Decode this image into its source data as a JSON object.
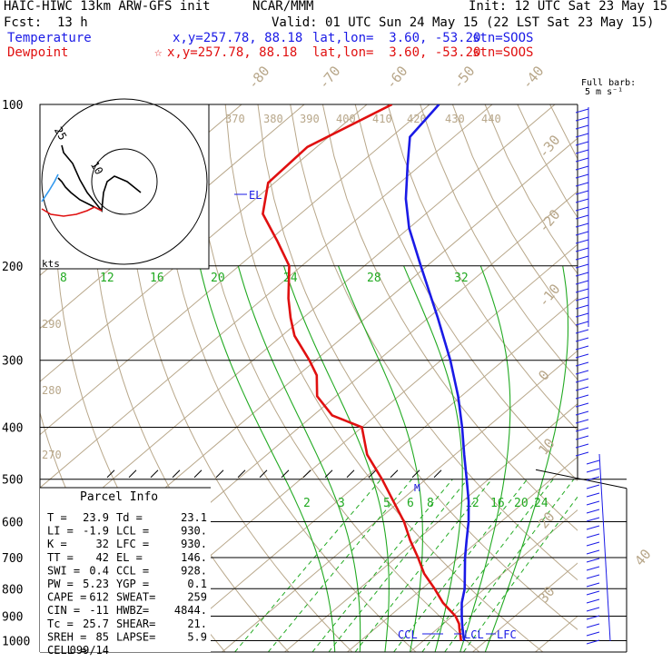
{
  "header": {
    "model": "HAIC-HIWC 13km ARW-GFS init",
    "org": "NCAR/MMM",
    "init": "Init: 12 UTC Sat 23 May 15",
    "fcst_label": "Fcst:",
    "fcst_value": "13 h",
    "valid": "Valid: 01 UTC Sun 24 May 15 (22 LST Sat 23 May 15)",
    "temp_label": "Temperature",
    "temp_xy": "x,y=257.78, 88.18",
    "temp_latlon": "lat,lon=  3.60, -53.20",
    "temp_stn": "stn=SOOS",
    "dew_label": "Dewpoint",
    "dew_marker": "☆",
    "dew_xy": "x,y=257.78, 88.18",
    "dew_latlon": "lat,lon=  3.60, -53.20",
    "dew_stn": "stn=SOOS",
    "full_barb_1": "Full barb:",
    "full_barb_2": "5 m s⁻¹"
  },
  "colors": {
    "temperature": "#1a1ae6",
    "dewpoint": "#e01010",
    "isotherm": "#b8a78a",
    "mixing_ratio": "#22aa22",
    "grid": "#000000"
  },
  "parcel_info": {
    "title": "Parcel Info",
    "rows": [
      [
        "T  =",
        "23.9",
        "Td =",
        "23.1"
      ],
      [
        "LI =",
        "-1.9",
        "LCL =",
        "930."
      ],
      [
        "K  =",
        "32",
        "LFC =",
        "930."
      ],
      [
        "TT =",
        "42",
        "EL =",
        "146."
      ],
      [
        "SWI =",
        "0.4",
        "CCL =",
        "928."
      ],
      [
        "PW =",
        "5.23",
        "YGP =",
        "0.1"
      ],
      [
        "CAPE =",
        "612",
        "SWEAT=",
        "259"
      ],
      [
        "CIN =",
        "-11",
        "HWBZ=",
        "4844."
      ],
      [
        "Tc =",
        "25.7",
        "SHEAR=",
        "21."
      ],
      [
        "SREH =",
        "85",
        "LAPSE=",
        "5.9"
      ],
      [
        "CELL =",
        "099/14",
        "",
        ""
      ]
    ]
  },
  "hodograph": {
    "units": "kts",
    "ring_labels": [
      "25",
      "10"
    ]
  },
  "markers": {
    "el": "EL",
    "m": "M",
    "ccl": "CCL",
    "lcl": "LCL",
    "lfc": "LFC"
  },
  "chart_data": {
    "type": "line",
    "title": "",
    "xlabel": "",
    "ylabel": "",
    "pressure_levels": [
      100,
      200,
      300,
      400,
      500,
      600,
      700,
      800,
      900,
      1000
    ],
    "y_scale": "log pressure (hPa)",
    "isotherm_labels": [
      "-80",
      "-70",
      "-60",
      "-50",
      "-40",
      "-30",
      "-20",
      "-10",
      "0",
      "10",
      "20",
      "30",
      "40"
    ],
    "theta_labels": [
      "370",
      "380",
      "390",
      "400",
      "410",
      "420",
      "430",
      "440",
      "290",
      "280",
      "270"
    ],
    "mixing_ratio_labels_upper": [
      "8",
      "12",
      "16",
      "20",
      "24",
      "28",
      "32"
    ],
    "mixing_ratio_labels_lower": [
      "2",
      "3",
      "5",
      "6",
      "8",
      "12",
      "16",
      "20",
      "24"
    ],
    "series": [
      {
        "name": "Temperature",
        "p": [
          1000,
          950,
          930,
          900,
          850,
          800,
          750,
          700,
          650,
          600,
          550,
          500,
          450,
          400,
          350,
          300,
          250,
          200,
          170,
          150,
          130,
          115,
          100
        ],
        "t": [
          26.5,
          24.0,
          23.0,
          21.5,
          19.0,
          16.8,
          14.0,
          11.0,
          8.0,
          4.8,
          1.0,
          -3.5,
          -8.5,
          -14.0,
          -20.5,
          -28.5,
          -38.5,
          -51.0,
          -60.0,
          -66.0,
          -72.0,
          -77.0,
          -78.5
        ]
      },
      {
        "name": "Dewpoint",
        "p": [
          1000,
          950,
          930,
          900,
          850,
          800,
          750,
          700,
          650,
          600,
          550,
          500,
          450,
          400,
          380,
          350,
          320,
          300,
          270,
          250,
          230,
          200,
          180,
          160,
          140,
          120,
          100
        ],
        "t": [
          26.0,
          23.5,
          22.5,
          20.5,
          16.0,
          12.0,
          7.5,
          3.5,
          -1.0,
          -5.5,
          -11.0,
          -17.0,
          -24.0,
          -30.0,
          -37.0,
          -43.0,
          -47.0,
          -51.0,
          -58.0,
          -62.0,
          -66.0,
          -72.0,
          -78.5,
          -86.0,
          -91.0,
          -91.5,
          -86.0
        ]
      }
    ],
    "grid": true
  }
}
